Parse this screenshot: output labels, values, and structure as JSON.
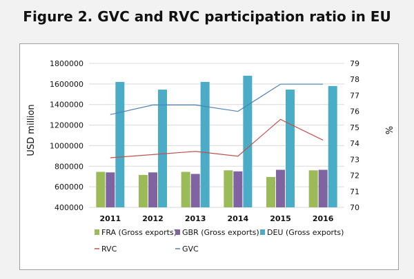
{
  "figure_title": "Figure 2. GVC and RVC participation ratio in EU",
  "chart_data": {
    "type": "bar",
    "categories": [
      "2011",
      "2012",
      "2013",
      "2014",
      "2015",
      "2016"
    ],
    "series": [
      {
        "name": "FRA (Gross exports)",
        "type": "bar",
        "axis": "left",
        "color": "#9bbb59",
        "values": [
          745000,
          715000,
          745000,
          760000,
          695000,
          760000
        ]
      },
      {
        "name": "GBR (Gross exports)",
        "type": "bar",
        "axis": "left",
        "color": "#8064a2",
        "values": [
          740000,
          740000,
          725000,
          750000,
          765000,
          765000
        ]
      },
      {
        "name": "DEU (Gross exports)",
        "type": "bar",
        "axis": "left",
        "color": "#4bacc6",
        "values": [
          1620000,
          1545000,
          1620000,
          1680000,
          1545000,
          1580000
        ]
      },
      {
        "name": "RVC",
        "type": "line",
        "axis": "right",
        "color": "#c0504d",
        "values": [
          73.1,
          73.3,
          73.5,
          73.2,
          75.5,
          74.2
        ]
      },
      {
        "name": "GVC",
        "type": "line",
        "axis": "right",
        "color": "#4f81bd",
        "values": [
          75.8,
          76.4,
          76.4,
          76.0,
          77.7,
          77.7
        ]
      }
    ],
    "ylabel": "USD million",
    "ylim": [
      400000,
      1800000
    ],
    "y_ticks": [
      400000,
      600000,
      800000,
      1000000,
      1200000,
      1400000,
      1600000,
      1800000
    ],
    "y2label": "%",
    "y2lim": [
      70,
      79
    ],
    "y2_ticks": [
      70,
      71,
      72,
      73,
      74,
      75,
      76,
      77,
      78,
      79
    ],
    "grid": true,
    "legend_position": "bottom"
  }
}
